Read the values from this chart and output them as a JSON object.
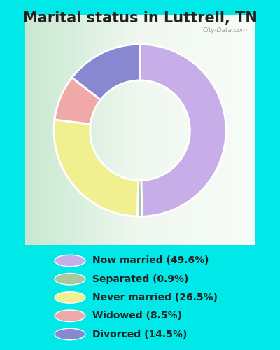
{
  "title": "Marital status in Luttrell, TN",
  "categories": [
    "Now married",
    "Separated",
    "Never married",
    "Widowed",
    "Divorced"
  ],
  "values": [
    49.6,
    0.9,
    26.5,
    8.5,
    14.5
  ],
  "colors": [
    "#c8aee8",
    "#aac8a0",
    "#f0f090",
    "#f0a8a8",
    "#8888d0"
  ],
  "legend_labels": [
    "Now married (49.6%)",
    "Separated (0.9%)",
    "Never married (26.5%)",
    "Widowed (8.5%)",
    "Divorced (14.5%)"
  ],
  "bg_cyan": "#00e8e8",
  "bg_chart_left": "#c8e8d0",
  "bg_chart_right": "#e8f0e8",
  "title_fontsize": 15,
  "donut_width": 0.42,
  "watermark": "City-Data.com",
  "title_color": "#222222",
  "legend_text_color": "#222222",
  "legend_fontsize": 10
}
